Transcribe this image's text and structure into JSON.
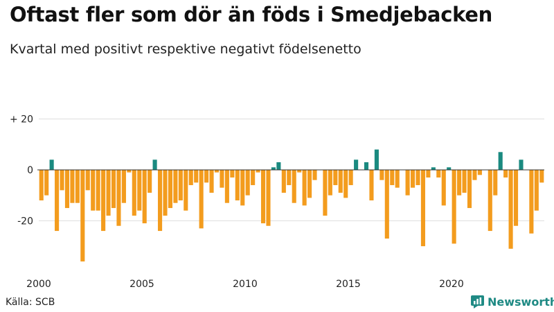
{
  "header": {
    "title": "Oftast fler som dör än föds i Smedjebacken",
    "subtitle": "Kvartal med positivt respektive negativt födelsenetto"
  },
  "footer": {
    "source": "Källa: SCB",
    "brand": "Newsworthy"
  },
  "colors": {
    "positive": "#1a8a80",
    "negative": "#f39c1e",
    "axis": "#333333",
    "grid": "#dddddd",
    "brand": "#1f8a84"
  },
  "chart_data": {
    "type": "bar",
    "title": "Oftast fler som dör än föds i Smedjebacken",
    "subtitle": "Kvartal med positivt respektive negativt födelsenetto",
    "xlabel": "",
    "ylabel": "",
    "start_year": 2000,
    "periods_per_year": 4,
    "ylim": [
      -37,
      22
    ],
    "y_ticks": [
      {
        "value": 20,
        "label": "+ 20"
      },
      {
        "value": 0,
        "label": "0"
      },
      {
        "value": -20,
        "label": "-20"
      }
    ],
    "x_ticks": [
      {
        "year": 2000,
        "label": "2000"
      },
      {
        "year": 2005,
        "label": "2005"
      },
      {
        "year": 2010,
        "label": "2010"
      },
      {
        "year": 2015,
        "label": "2015"
      },
      {
        "year": 2020,
        "label": "2020"
      }
    ],
    "values": [
      -12,
      -10,
      4,
      -24,
      -8,
      -15,
      -13,
      -13,
      -36,
      -8,
      -16,
      -16,
      -24,
      -18,
      -15,
      -22,
      -13,
      -1,
      -18,
      -16,
      -21,
      -9,
      4,
      -24,
      -18,
      -15,
      -13,
      -12,
      -16,
      -6,
      -5,
      -23,
      -5,
      -9,
      -1,
      -7,
      -13,
      -3,
      -12,
      -14,
      -10,
      -6,
      -1,
      -21,
      -22,
      1,
      3,
      -9,
      -6,
      -13,
      -1,
      -14,
      -11,
      -4,
      0,
      -18,
      -10,
      -6,
      -9,
      -11,
      -6,
      4,
      0,
      3,
      -12,
      8,
      -4,
      -27,
      -6,
      -7,
      0,
      -10,
      -7,
      -6,
      -30,
      -3,
      1,
      -3,
      -14,
      1,
      -29,
      -10,
      -9,
      -15,
      -4,
      -2,
      0,
      -24,
      -10,
      7,
      -3,
      -31,
      -22,
      4,
      0,
      -25,
      -16,
      -5
    ]
  }
}
